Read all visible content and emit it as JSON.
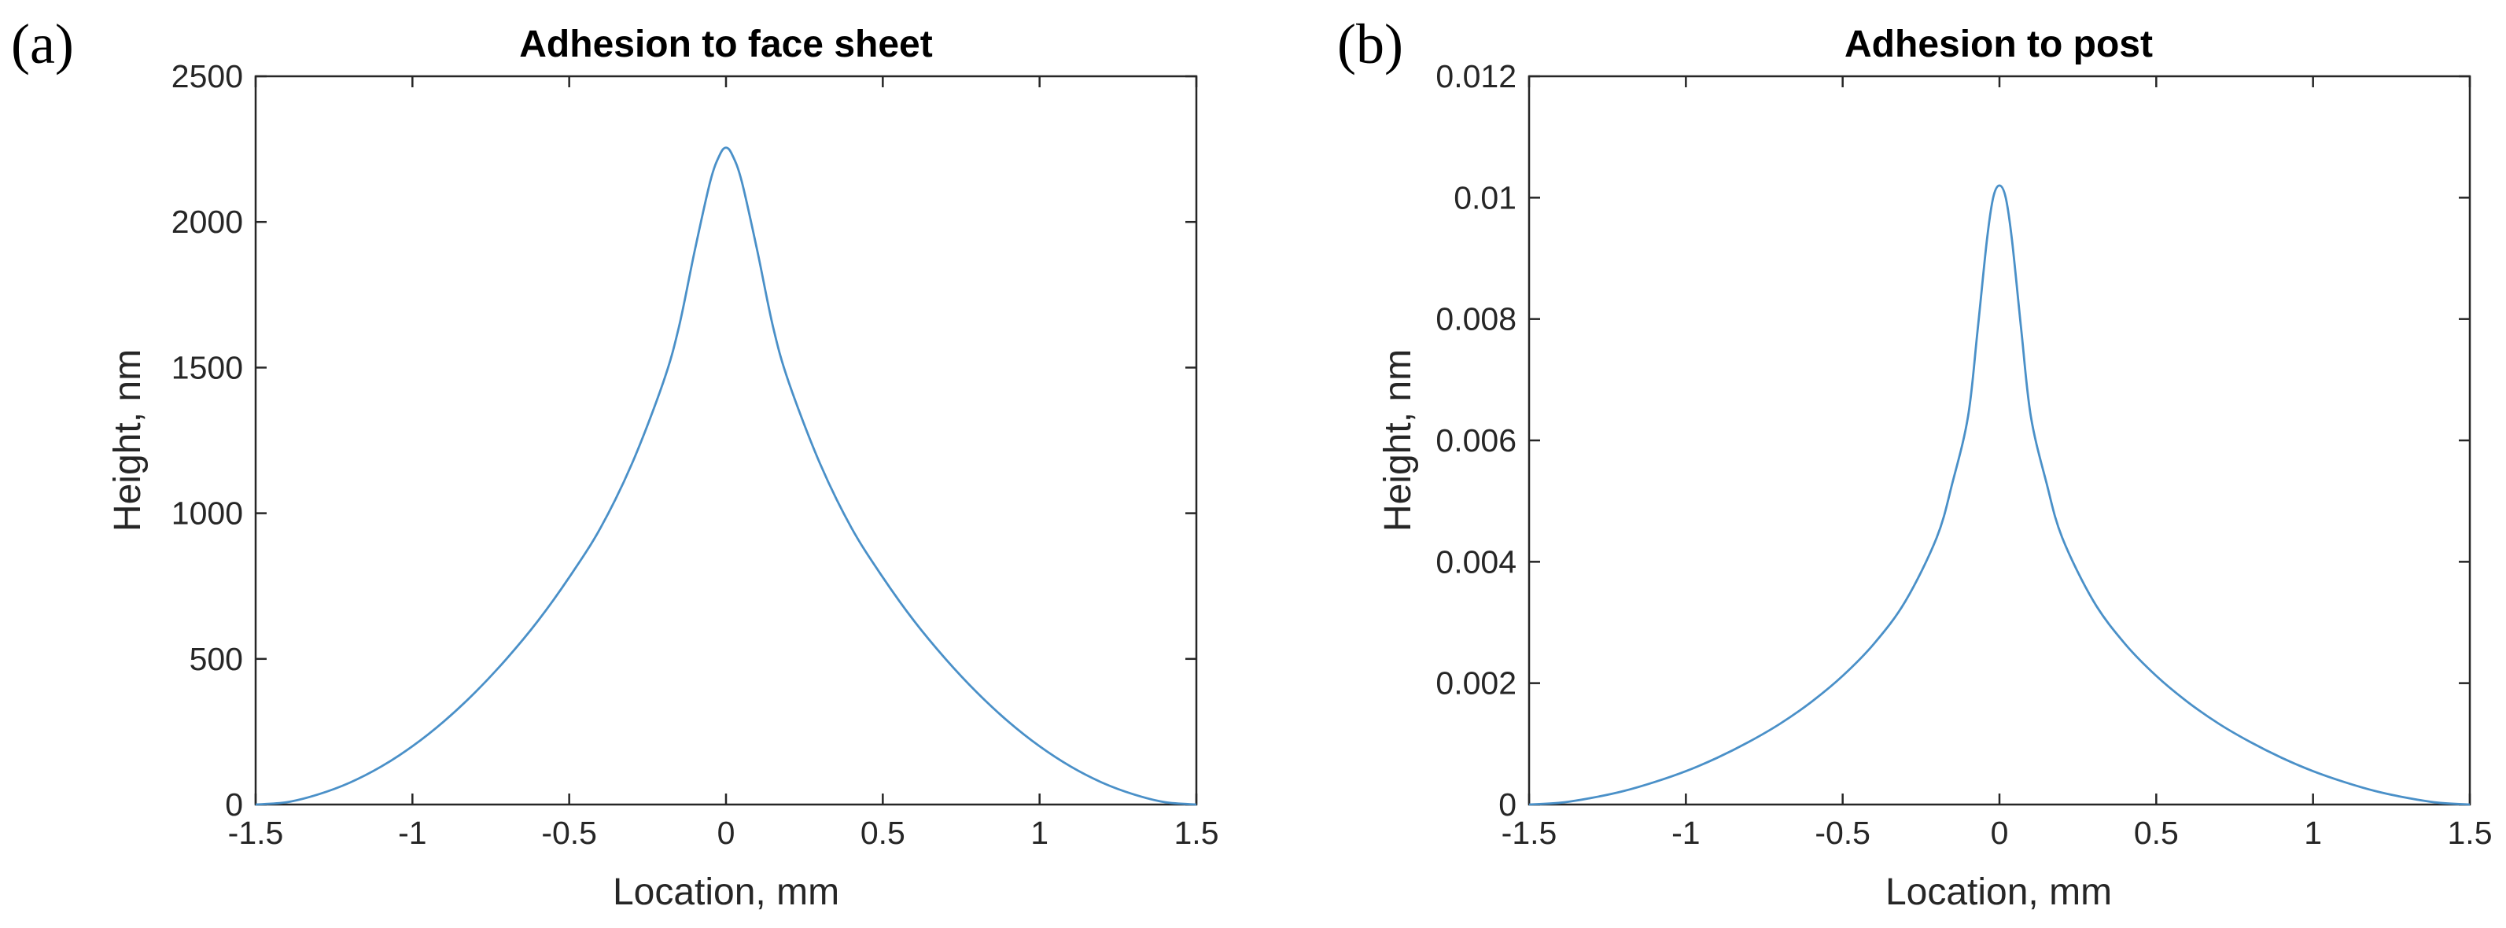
{
  "chart_data": [
    {
      "type": "line",
      "panel_label": "(a)",
      "title": "Adhesion to face sheet",
      "xlabel": "Location, mm",
      "ylabel": "Height, nm",
      "xlim": [
        -1.5,
        1.5
      ],
      "ylim": [
        0,
        2500
      ],
      "xticks": [
        -1.5,
        -1,
        -0.5,
        0,
        0.5,
        1,
        1.5
      ],
      "xtick_labels": [
        "-1.5",
        "-1",
        "-0.5",
        "0",
        "0.5",
        "1",
        "1.5"
      ],
      "yticks": [
        0,
        500,
        1000,
        1500,
        2000,
        2500
      ],
      "ytick_labels": [
        "0",
        "500",
        "1000",
        "1500",
        "2000",
        "2500"
      ],
      "grid": false,
      "series": [
        {
          "name": "Height",
          "color": "#4a90c8",
          "x": [
            -1.5,
            -1.4,
            -1.3,
            -1.2,
            -1.1,
            -1.0,
            -0.9,
            -0.8,
            -0.7,
            -0.6,
            -0.5,
            -0.4,
            -0.3,
            -0.2,
            -0.15,
            -0.1,
            -0.05,
            -0.02,
            0,
            0.02,
            0.05,
            0.1,
            0.15,
            0.2,
            0.3,
            0.4,
            0.5,
            0.6,
            0.7,
            0.8,
            0.9,
            1.0,
            1.1,
            1.2,
            1.3,
            1.4,
            1.5
          ],
          "y": [
            0,
            8,
            35,
            75,
            130,
            200,
            285,
            385,
            500,
            630,
            780,
            950,
            1170,
            1450,
            1640,
            1900,
            2140,
            2230,
            2255,
            2230,
            2140,
            1900,
            1640,
            1450,
            1170,
            950,
            780,
            630,
            500,
            385,
            285,
            200,
            130,
            75,
            35,
            8,
            0
          ]
        }
      ]
    },
    {
      "type": "line",
      "panel_label": "(b)",
      "title": "Adhesion to post",
      "xlabel": "Location, mm",
      "ylabel": "Height, nm",
      "xlim": [
        -1.5,
        1.5
      ],
      "ylim": [
        0,
        0.012
      ],
      "xticks": [
        -1.5,
        -1,
        -0.5,
        0,
        0.5,
        1,
        1.5
      ],
      "xtick_labels": [
        "-1.5",
        "-1",
        "-0.5",
        "0",
        "0.5",
        "1",
        "1.5"
      ],
      "yticks": [
        0,
        0.002,
        0.004,
        0.006,
        0.008,
        0.01,
        0.012
      ],
      "ytick_labels": [
        "0",
        "0.002",
        "0.004",
        "0.006",
        "0.008",
        "0.01",
        "0.012"
      ],
      "grid": false,
      "series": [
        {
          "name": "Height",
          "color": "#4a90c8",
          "x": [
            -1.5,
            -1.4,
            -1.3,
            -1.2,
            -1.1,
            -1.0,
            -0.9,
            -0.8,
            -0.7,
            -0.6,
            -0.5,
            -0.4,
            -0.3,
            -0.2,
            -0.15,
            -0.1,
            -0.07,
            -0.04,
            -0.02,
            0,
            0.02,
            0.04,
            0.07,
            0.1,
            0.15,
            0.2,
            0.3,
            0.4,
            0.5,
            0.6,
            0.7,
            0.8,
            0.9,
            1.0,
            1.1,
            1.2,
            1.3,
            1.4,
            1.5
          ],
          "y": [
            0,
            3e-05,
            0.00011,
            0.00022,
            0.00037,
            0.00055,
            0.00077,
            0.00103,
            0.00133,
            0.00169,
            0.00212,
            0.00265,
            0.00335,
            0.0044,
            0.0053,
            0.0064,
            0.0078,
            0.0093,
            0.01,
            0.0102,
            0.01,
            0.0093,
            0.0078,
            0.0064,
            0.0053,
            0.0044,
            0.00335,
            0.00265,
            0.00212,
            0.00169,
            0.00133,
            0.00103,
            0.00077,
            0.00055,
            0.00037,
            0.00022,
            0.00011,
            3e-05,
            0
          ]
        }
      ]
    }
  ]
}
